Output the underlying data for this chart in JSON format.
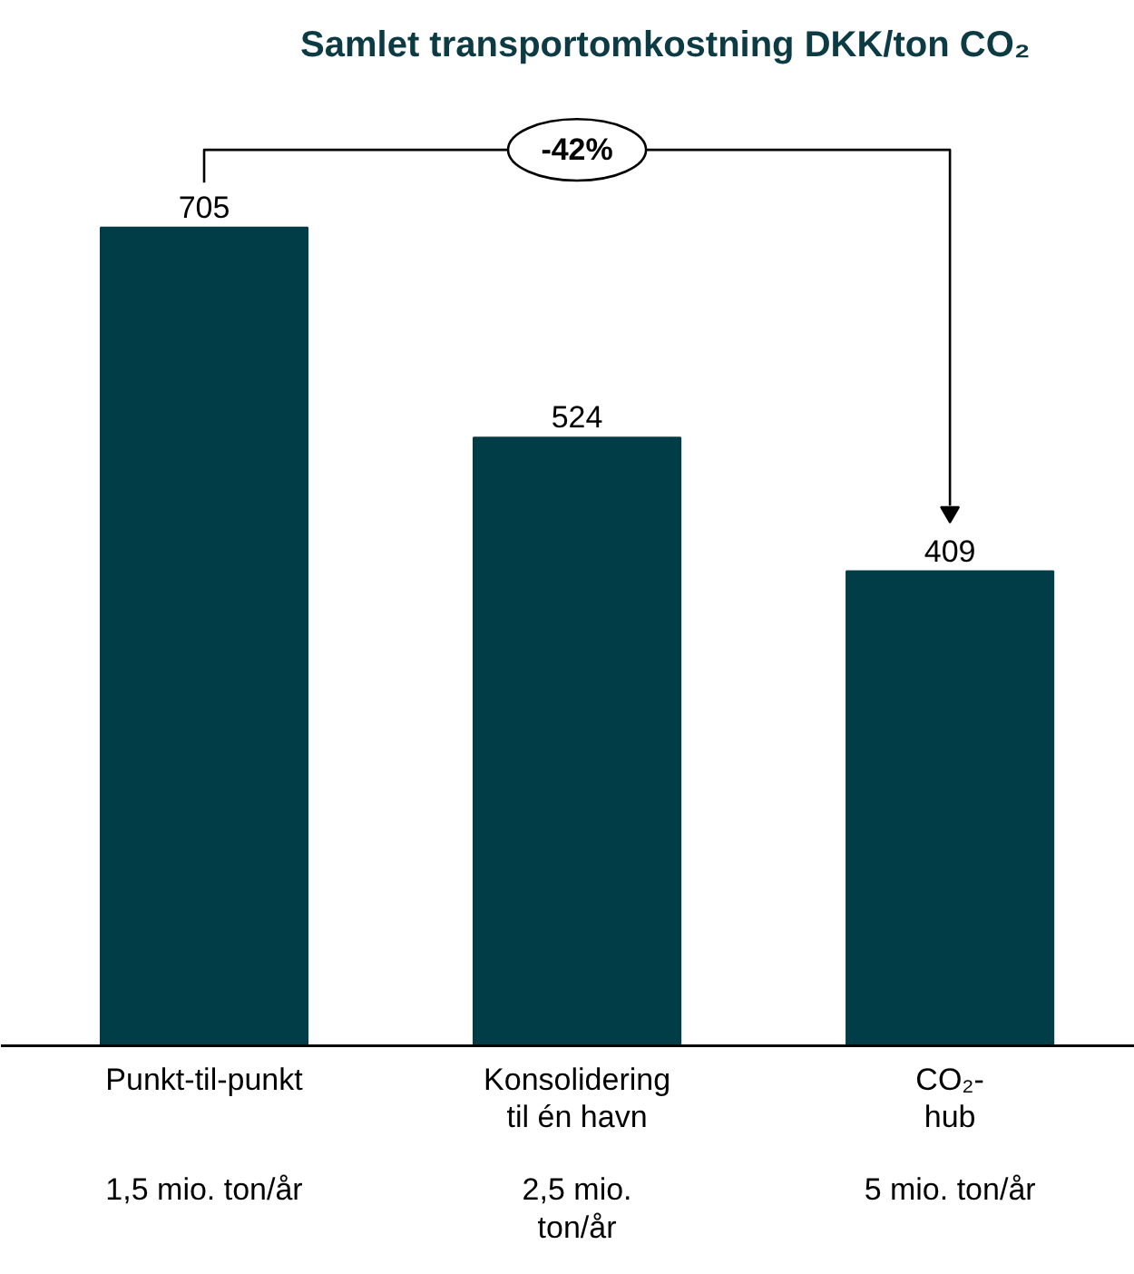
{
  "chart_data": {
    "type": "bar",
    "title": "Samlet transportomkostning  DKK/ton CO₂",
    "categories": [
      "Punkt-til-punkt",
      "Konsolidering\ntil én havn",
      "CO₂-\nhub"
    ],
    "values": [
      705,
      524,
      409
    ],
    "color": "#003d47",
    "data_labels": true,
    "annotations": [
      "-42%",
      "1,5 mio. ton/år",
      "2,5 mio.\nton/år",
      "5 mio. ton/år"
    ],
    "grid": false
  }
}
